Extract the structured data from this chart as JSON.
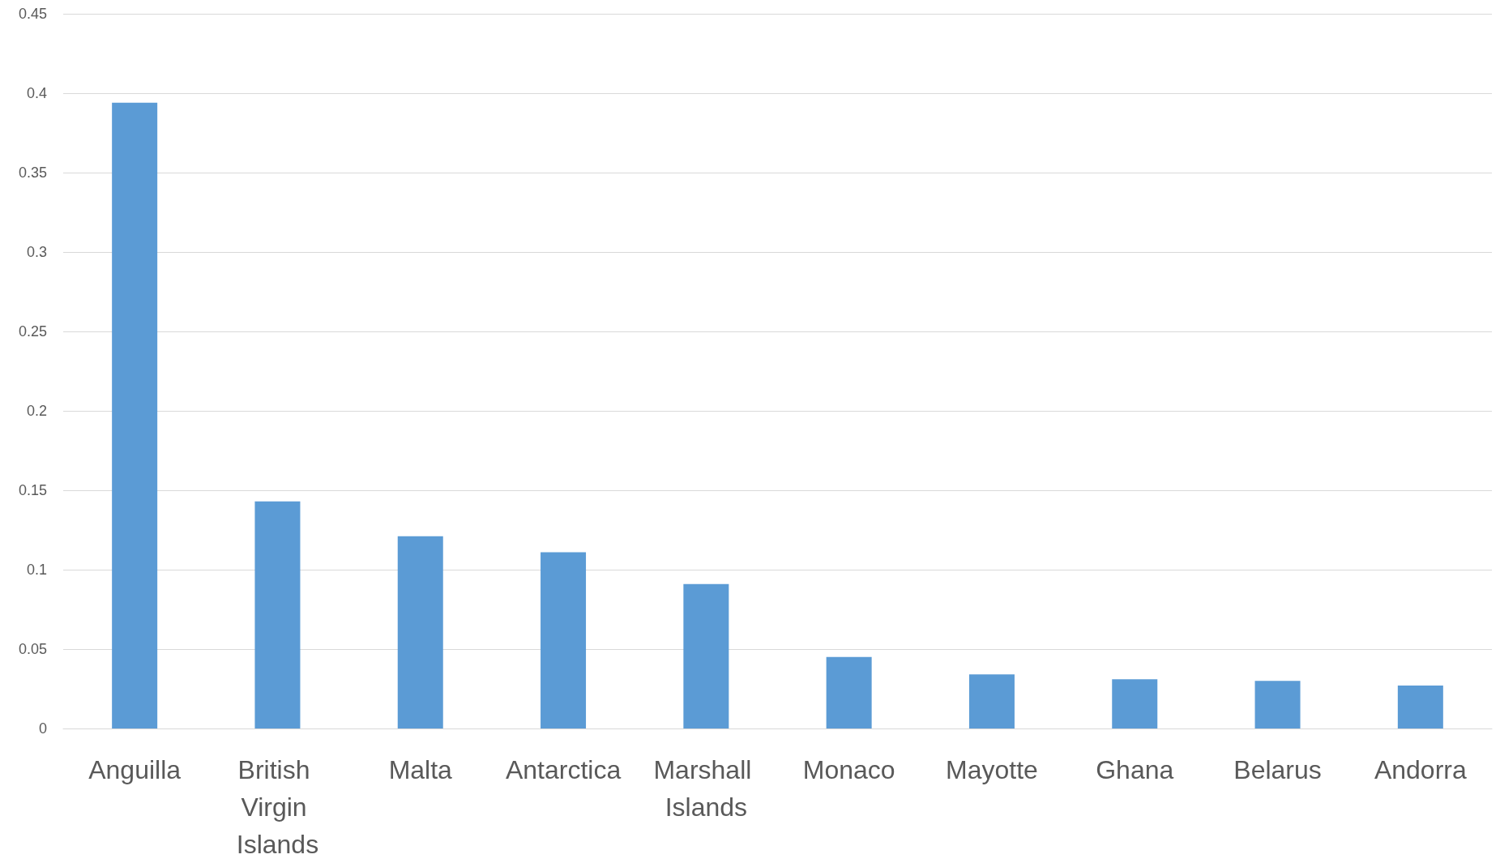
{
  "chart_data": {
    "type": "bar",
    "categories": [
      "Anguilla",
      "British Virgin Islands",
      "Malta",
      "Antarctica",
      "Marshall Islands",
      "Monaco",
      "Mayotte",
      "Ghana",
      "Belarus",
      "Andorra"
    ],
    "values": [
      0.394,
      0.143,
      0.121,
      0.111,
      0.091,
      0.045,
      0.034,
      0.031,
      0.03,
      0.027
    ],
    "color": "#5b9bd5",
    "ylim": [
      0,
      0.45
    ],
    "yticks": [
      0,
      0.05,
      0.1,
      0.15,
      0.2,
      0.25,
      0.3,
      0.35,
      0.4,
      0.45
    ],
    "grid": "y"
  }
}
